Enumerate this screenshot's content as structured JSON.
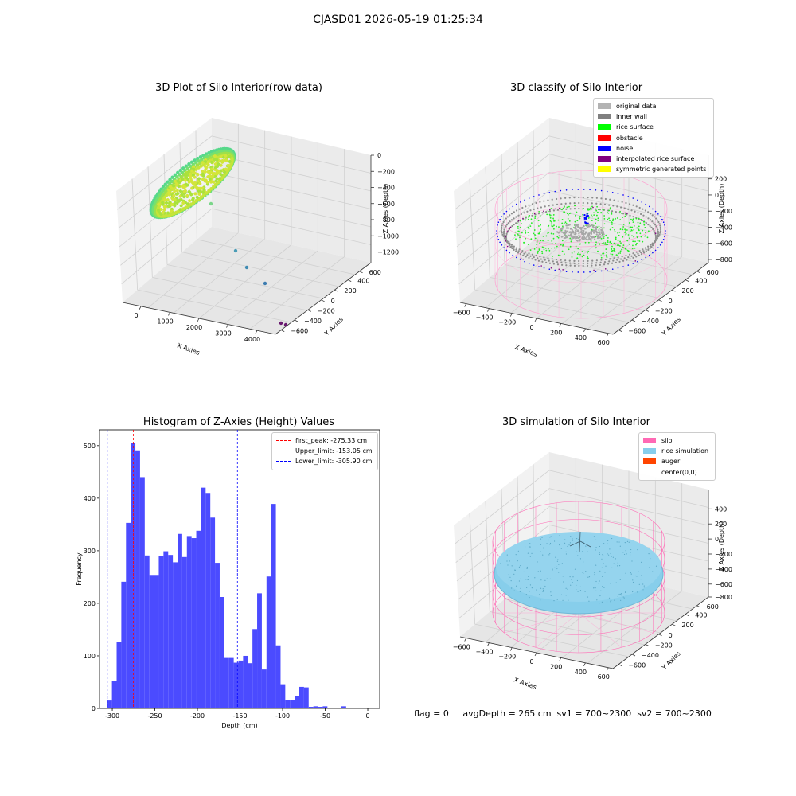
{
  "suptitle": "CJASD01 2026-05-19 01:25:34",
  "footer": "flag = 0     avgDepth = 265 cm  sv1 = 700~2300  sv2 = 700~2300",
  "chart_data": [
    {
      "type": "scatter",
      "title": "3D Plot of Silo Interior(row data)",
      "xlabel": "X Axies",
      "ylabel": "Y Axies",
      "zlabel": "Z Axies (Depth)",
      "x_ticks": [
        "0",
        "1000",
        "2000",
        "3000",
        "4000"
      ],
      "y_ticks": [
        "600",
        "400",
        "200",
        "0",
        "−200",
        "−400",
        "−600"
      ],
      "z_ticks": [
        "0",
        "−200",
        "−400",
        "−600",
        "−800",
        "−1000",
        "−1200"
      ],
      "outliers": [
        {
          "x": 1100,
          "y": 300,
          "z": -620
        },
        {
          "x": 1900,
          "y": 300,
          "z": -800
        },
        {
          "x": 2300,
          "y": 300,
          "z": -960
        },
        {
          "x": 2600,
          "y": 300,
          "z": -1120
        },
        {
          "x": 3700,
          "y": -100,
          "z": -1250
        },
        {
          "x": 3800,
          "y": -100,
          "z": -1250
        }
      ]
    },
    {
      "type": "scatter",
      "title": "3D classify of Silo Interior",
      "xlabel": "X Axies",
      "ylabel": "Y Axies",
      "zlabel": "Z Axies (Depth)",
      "x_ticks": [
        "−600",
        "−400",
        "−200",
        "0",
        "200",
        "400",
        "600"
      ],
      "y_ticks": [
        "600",
        "400",
        "200",
        "0",
        "−200",
        "−400",
        "−600"
      ],
      "z_ticks": [
        "200",
        "0",
        "−200",
        "−400",
        "−600",
        "−800"
      ],
      "legend": [
        {
          "label": "original data",
          "color": "#b3b3b3"
        },
        {
          "label": "inner wall",
          "color": "#808080"
        },
        {
          "label": "rice surface",
          "color": "#00ff00"
        },
        {
          "label": "obstacle",
          "color": "#ff0000"
        },
        {
          "label": "noise",
          "color": "#0000ff"
        },
        {
          "label": "interpolated rice surface",
          "color": "#800080"
        },
        {
          "label": "symmetric generated points",
          "color": "#ffff00"
        }
      ]
    },
    {
      "type": "bar",
      "title": "Histogram of Z-Axies (Height) Values",
      "xlabel": "Depth (cm)",
      "ylabel": "Frequency",
      "xlim": [
        -315,
        14
      ],
      "ylim": [
        0,
        530
      ],
      "x_ticks": [
        -300,
        -250,
        -200,
        -150,
        -100,
        -50,
        0
      ],
      "y_ticks": [
        0,
        100,
        200,
        300,
        400,
        500
      ],
      "bin_start": -305.9,
      "bin_width": 5.5,
      "values": [
        15,
        52,
        127,
        241,
        353,
        505,
        491,
        440,
        291,
        254,
        254,
        290,
        299,
        292,
        278,
        332,
        288,
        328,
        324,
        338,
        420,
        410,
        363,
        277,
        212,
        96,
        96,
        87,
        91,
        100,
        86,
        151,
        219,
        74,
        251,
        389,
        120,
        46,
        16,
        16,
        23,
        41,
        40,
        3,
        4,
        3,
        4,
        0,
        0,
        0,
        4
      ],
      "color": "#4b4bff",
      "vlines": [
        {
          "label": "first_peak: -275.33 cm",
          "x": -275.33,
          "color": "#ff0000"
        },
        {
          "label": "Upper_limit: -153.05 cm",
          "x": -153.05,
          "color": "#0000ff"
        },
        {
          "label": "Lower_limit: -305.90 cm",
          "x": -305.9,
          "color": "#0000ff"
        }
      ]
    },
    {
      "type": "scatter",
      "title": "3D simulation of Silo Interior",
      "xlabel": "X Axies",
      "ylabel": "Y Axies",
      "zlabel": "Z Axies (Depth)",
      "x_ticks": [
        "−600",
        "−400",
        "−200",
        "0",
        "200",
        "400",
        "600"
      ],
      "y_ticks": [
        "600",
        "400",
        "200",
        "0",
        "−200",
        "−400",
        "−600"
      ],
      "z_ticks": [
        "400",
        "200",
        "0",
        "−200",
        "−400",
        "−600",
        "−800"
      ],
      "legend": [
        {
          "label": "silo",
          "color": "#ff69b4"
        },
        {
          "label": "rice simulation",
          "color": "#87ceeb"
        },
        {
          "label": "auger",
          "color": "#ff4500"
        },
        {
          "label": "center(0,0)",
          "color": ""
        }
      ]
    }
  ]
}
